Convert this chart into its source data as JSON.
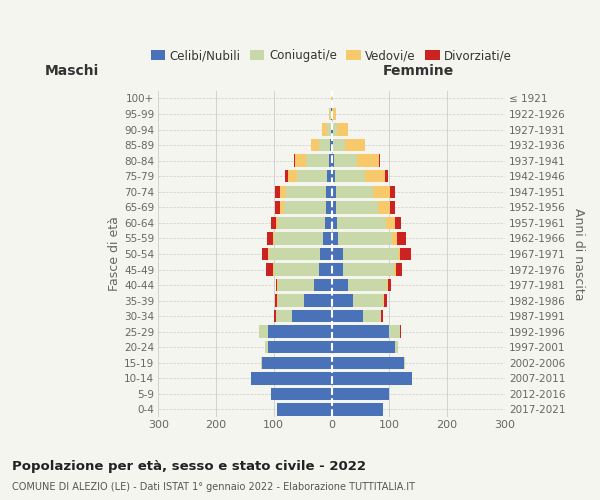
{
  "age_groups": [
    "0-4",
    "5-9",
    "10-14",
    "15-19",
    "20-24",
    "25-29",
    "30-34",
    "35-39",
    "40-44",
    "45-49",
    "50-54",
    "55-59",
    "60-64",
    "65-69",
    "70-74",
    "75-79",
    "80-84",
    "85-89",
    "90-94",
    "95-99",
    "100+"
  ],
  "birth_years": [
    "2017-2021",
    "2012-2016",
    "2007-2011",
    "2002-2006",
    "1997-2001",
    "1992-1996",
    "1987-1991",
    "1982-1986",
    "1977-1981",
    "1972-1976",
    "1967-1971",
    "1962-1966",
    "1957-1961",
    "1952-1956",
    "1947-1951",
    "1942-1946",
    "1937-1941",
    "1932-1936",
    "1927-1931",
    "1922-1926",
    "≤ 1921"
  ],
  "male": {
    "celibi": [
      95,
      105,
      140,
      120,
      110,
      110,
      68,
      48,
      30,
      22,
      20,
      14,
      12,
      10,
      10,
      8,
      5,
      3,
      1,
      1,
      0
    ],
    "coniugati": [
      0,
      0,
      0,
      2,
      5,
      15,
      28,
      45,
      62,
      78,
      88,
      85,
      80,
      72,
      68,
      52,
      40,
      18,
      7,
      2,
      0
    ],
    "vedovi": [
      0,
      0,
      0,
      0,
      0,
      1,
      1,
      1,
      2,
      2,
      2,
      3,
      5,
      8,
      12,
      15,
      18,
      14,
      8,
      2,
      1
    ],
    "divorziati": [
      0,
      0,
      0,
      0,
      0,
      0,
      2,
      4,
      3,
      12,
      10,
      10,
      8,
      8,
      8,
      5,
      2,
      0,
      0,
      0,
      0
    ]
  },
  "female": {
    "nubili": [
      90,
      100,
      140,
      125,
      110,
      100,
      55,
      38,
      28,
      20,
      20,
      12,
      10,
      8,
      7,
      6,
      4,
      3,
      2,
      1,
      0
    ],
    "coniugate": [
      0,
      0,
      0,
      2,
      5,
      18,
      30,
      52,
      68,
      88,
      95,
      92,
      85,
      72,
      65,
      52,
      40,
      20,
      8,
      2,
      0
    ],
    "vedove": [
      0,
      0,
      0,
      0,
      0,
      0,
      1,
      1,
      2,
      4,
      4,
      10,
      15,
      22,
      30,
      35,
      38,
      35,
      18,
      5,
      1
    ],
    "divorziate": [
      0,
      0,
      0,
      0,
      0,
      2,
      3,
      5,
      5,
      10,
      18,
      15,
      10,
      8,
      8,
      5,
      2,
      0,
      0,
      0,
      0
    ]
  },
  "colors": {
    "celibi": "#4a72b8",
    "coniugati": "#c8d8a8",
    "vedovi": "#f8c96a",
    "divorziati": "#cc2222"
  },
  "xlim": 300,
  "title_main": "Popolazione per età, sesso e stato civile - 2022",
  "title_sub": "COMUNE DI ALEZIO (LE) - Dati ISTAT 1° gennaio 2022 - Elaborazione TUTTITALIA.IT",
  "ylabel_left": "Fasce di età",
  "ylabel_right": "Anni di nascita",
  "xlabel_left": "Maschi",
  "xlabel_right": "Femmine",
  "bg_color": "#f5f5f0",
  "grid_color": "#cccccc",
  "xticks": [
    -300,
    -200,
    -100,
    0,
    100,
    200,
    300
  ]
}
